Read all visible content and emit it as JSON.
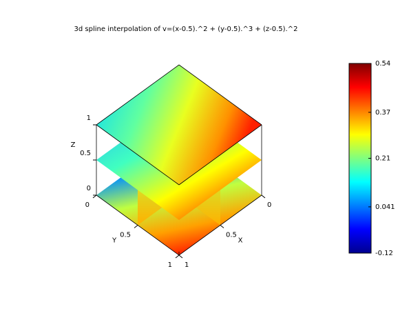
{
  "chart_data": {
    "type": "slice3d",
    "title": "3d spline interpolation of v=(x-0.5).^2 + (y-0.5).^3 + (z-0.5).^2",
    "xlabel": "X",
    "ylabel": "Y",
    "zlabel": "Z",
    "xlim": [
      0,
      1
    ],
    "ylim": [
      0,
      1
    ],
    "zlim": [
      0,
      1
    ],
    "xticks": [
      0,
      0.5,
      1
    ],
    "yticks": [
      0,
      0.5,
      1
    ],
    "zticks": [
      0,
      0.5,
      1
    ],
    "colormap": "jet",
    "colorbar": {
      "lim": [
        -0.12,
        0.54
      ],
      "ticks": [
        0.54,
        0.37,
        0.21,
        0.041,
        -0.12
      ]
    }
  }
}
